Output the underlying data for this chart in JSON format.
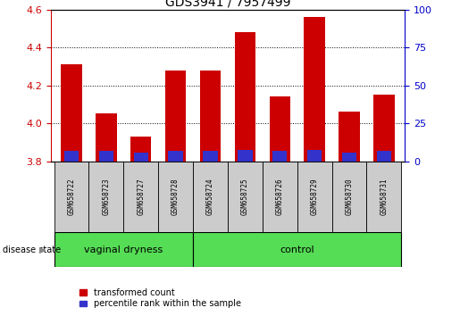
{
  "title": "GDS3941 / 7957499",
  "samples": [
    "GSM658722",
    "GSM658723",
    "GSM658727",
    "GSM658728",
    "GSM658724",
    "GSM658725",
    "GSM658726",
    "GSM658729",
    "GSM658730",
    "GSM658731"
  ],
  "red_values": [
    4.31,
    4.05,
    3.93,
    4.28,
    4.28,
    4.48,
    4.14,
    4.56,
    4.06,
    4.15
  ],
  "blue_segment_top": [
    3.855,
    3.855,
    3.845,
    3.855,
    3.855,
    3.858,
    3.855,
    3.858,
    3.845,
    3.855
  ],
  "bar_base": 3.8,
  "ylim_left": [
    3.8,
    4.6
  ],
  "ylim_right": [
    0,
    100
  ],
  "yticks_left": [
    3.8,
    4.0,
    4.2,
    4.4,
    4.6
  ],
  "yticks_right": [
    0,
    25,
    50,
    75,
    100
  ],
  "red_color": "#cc0000",
  "blue_color": "#3333cc",
  "group1_label": "vaginal dryness",
  "group2_label": "control",
  "group1_count": 4,
  "group2_count": 6,
  "group_bg_color": "#55dd55",
  "sample_bg_color": "#cccccc",
  "legend_red": "transformed count",
  "legend_blue": "percentile rank within the sample",
  "disease_state_label": "disease state",
  "left_tick_color": "#cc0000",
  "right_tick_color": "#0000cc",
  "bar_width": 0.6
}
